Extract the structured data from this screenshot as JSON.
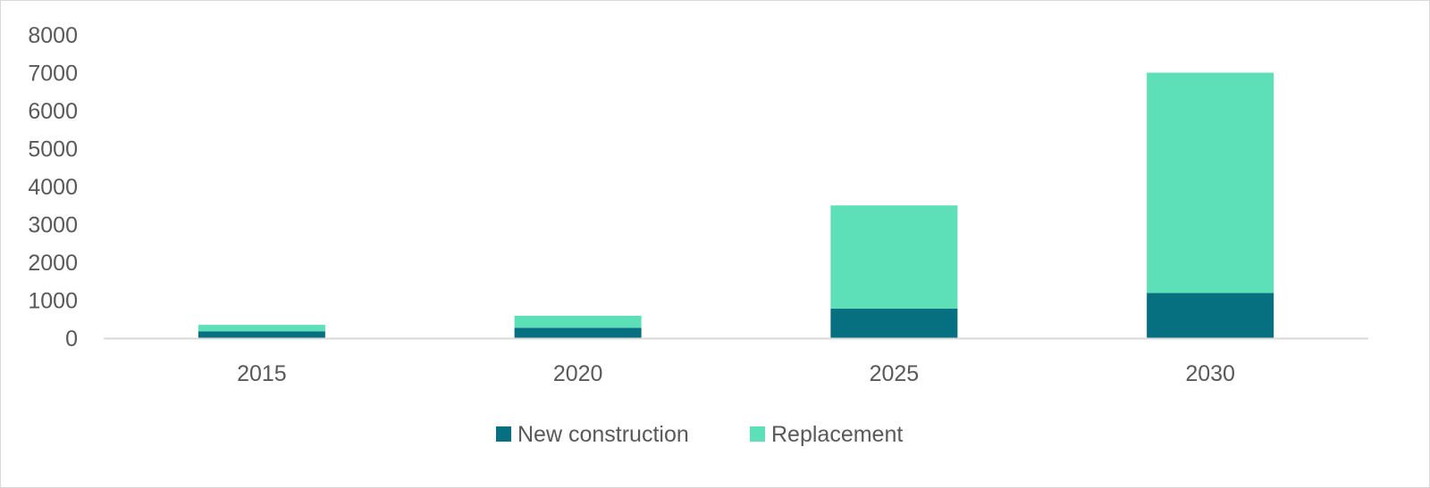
{
  "chart_data": {
    "type": "bar",
    "stacked": true,
    "categories": [
      "2015",
      "2020",
      "2025",
      "2030"
    ],
    "series": [
      {
        "name": "New construction",
        "color": "#077080",
        "values": [
          180,
          270,
          780,
          1190
        ]
      },
      {
        "name": "Replacement",
        "color": "#5ddfb8",
        "values": [
          170,
          320,
          2720,
          5810
        ]
      }
    ],
    "yticks": [
      "0",
      "1000",
      "2000",
      "3000",
      "4000",
      "5000",
      "6000",
      "7000",
      "8000"
    ],
    "ylim": [
      0,
      8000
    ],
    "grid": false,
    "legend": "bottom",
    "axis_color": "#d9d9d9",
    "text_color": "#595959"
  }
}
